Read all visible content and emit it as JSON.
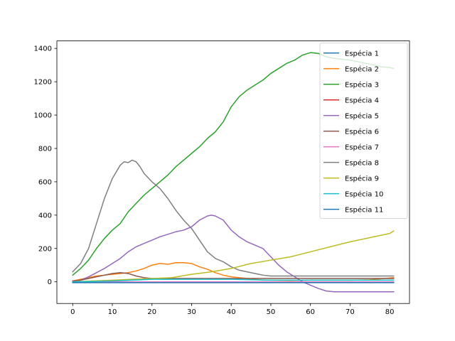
{
  "chart_data": {
    "type": "line",
    "xlim": [
      -4,
      85
    ],
    "ylim": [
      -130,
      1445
    ],
    "xticks": [
      0,
      10,
      20,
      30,
      40,
      50,
      60,
      70,
      80
    ],
    "yticks": [
      0,
      200,
      400,
      600,
      800,
      1000,
      1200,
      1400
    ],
    "grid": false,
    "legend_position": "top-right",
    "series": [
      {
        "name": "Espécia 1",
        "color": "#1f77b4",
        "points": [
          [
            0,
            0
          ],
          [
            81,
            0
          ]
        ]
      },
      {
        "name": "Espécia 2",
        "color": "#ff7f0e",
        "points": [
          [
            0,
            5
          ],
          [
            2,
            15
          ],
          [
            4,
            25
          ],
          [
            6,
            35
          ],
          [
            8,
            40
          ],
          [
            10,
            45
          ],
          [
            12,
            50
          ],
          [
            14,
            55
          ],
          [
            16,
            65
          ],
          [
            18,
            80
          ],
          [
            20,
            100
          ],
          [
            22,
            110
          ],
          [
            24,
            105
          ],
          [
            26,
            115
          ],
          [
            28,
            115
          ],
          [
            30,
            110
          ],
          [
            32,
            90
          ],
          [
            34,
            75
          ],
          [
            36,
            55
          ],
          [
            38,
            40
          ],
          [
            40,
            30
          ],
          [
            42,
            25
          ],
          [
            44,
            20
          ],
          [
            46,
            15
          ],
          [
            48,
            10
          ],
          [
            50,
            10
          ],
          [
            55,
            8
          ],
          [
            60,
            10
          ],
          [
            65,
            10
          ],
          [
            70,
            10
          ],
          [
            75,
            12
          ],
          [
            81,
            25
          ]
        ]
      },
      {
        "name": "Espécia 3",
        "color": "#2ca02c",
        "points": [
          [
            0,
            40
          ],
          [
            2,
            80
          ],
          [
            4,
            130
          ],
          [
            6,
            200
          ],
          [
            8,
            260
          ],
          [
            10,
            310
          ],
          [
            12,
            350
          ],
          [
            14,
            420
          ],
          [
            16,
            470
          ],
          [
            18,
            520
          ],
          [
            20,
            560
          ],
          [
            22,
            600
          ],
          [
            24,
            640
          ],
          [
            26,
            690
          ],
          [
            28,
            730
          ],
          [
            30,
            770
          ],
          [
            32,
            810
          ],
          [
            34,
            860
          ],
          [
            36,
            900
          ],
          [
            38,
            960
          ],
          [
            40,
            1050
          ],
          [
            42,
            1110
          ],
          [
            44,
            1150
          ],
          [
            46,
            1180
          ],
          [
            48,
            1210
          ],
          [
            50,
            1250
          ],
          [
            52,
            1280
          ],
          [
            54,
            1310
          ],
          [
            56,
            1330
          ],
          [
            58,
            1360
          ],
          [
            60,
            1375
          ],
          [
            62,
            1370
          ],
          [
            64,
            1350
          ],
          [
            66,
            1340
          ],
          [
            68,
            1335
          ],
          [
            70,
            1330
          ],
          [
            72,
            1320
          ],
          [
            74,
            1310
          ],
          [
            76,
            1300
          ],
          [
            78,
            1290
          ],
          [
            80,
            1285
          ],
          [
            81,
            1280
          ]
        ]
      },
      {
        "name": "Espécia 4",
        "color": "#d62728",
        "points": [
          [
            0,
            0
          ],
          [
            81,
            0
          ]
        ]
      },
      {
        "name": "Espécia 5",
        "color": "#9467bd",
        "points": [
          [
            0,
            5
          ],
          [
            2,
            10
          ],
          [
            4,
            30
          ],
          [
            6,
            55
          ],
          [
            8,
            80
          ],
          [
            10,
            110
          ],
          [
            12,
            140
          ],
          [
            14,
            180
          ],
          [
            16,
            210
          ],
          [
            18,
            230
          ],
          [
            20,
            250
          ],
          [
            22,
            270
          ],
          [
            24,
            285
          ],
          [
            26,
            300
          ],
          [
            28,
            310
          ],
          [
            30,
            330
          ],
          [
            32,
            370
          ],
          [
            34,
            395
          ],
          [
            35,
            400
          ],
          [
            36,
            395
          ],
          [
            38,
            370
          ],
          [
            40,
            310
          ],
          [
            42,
            270
          ],
          [
            44,
            240
          ],
          [
            46,
            220
          ],
          [
            48,
            200
          ],
          [
            50,
            150
          ],
          [
            52,
            100
          ],
          [
            54,
            60
          ],
          [
            56,
            30
          ],
          [
            58,
            0
          ],
          [
            60,
            -20
          ],
          [
            62,
            -40
          ],
          [
            64,
            -55
          ],
          [
            66,
            -60
          ],
          [
            70,
            -60
          ],
          [
            75,
            -60
          ],
          [
            81,
            -60
          ]
        ]
      },
      {
        "name": "Espécia 6",
        "color": "#8c564b",
        "points": [
          [
            0,
            5
          ],
          [
            2,
            10
          ],
          [
            4,
            20
          ],
          [
            6,
            30
          ],
          [
            8,
            40
          ],
          [
            10,
            50
          ],
          [
            12,
            55
          ],
          [
            14,
            50
          ],
          [
            16,
            35
          ],
          [
            18,
            25
          ],
          [
            20,
            20
          ],
          [
            25,
            20
          ],
          [
            30,
            20
          ],
          [
            40,
            20
          ],
          [
            50,
            20
          ],
          [
            60,
            20
          ],
          [
            70,
            20
          ],
          [
            81,
            20
          ]
        ]
      },
      {
        "name": "Espécia 7",
        "color": "#e377c2",
        "points": [
          [
            0,
            0
          ],
          [
            81,
            0
          ]
        ]
      },
      {
        "name": "Espécia 8",
        "color": "#7f7f7f",
        "points": [
          [
            0,
            60
          ],
          [
            2,
            110
          ],
          [
            4,
            200
          ],
          [
            6,
            350
          ],
          [
            8,
            500
          ],
          [
            10,
            620
          ],
          [
            12,
            700
          ],
          [
            13,
            720
          ],
          [
            14,
            715
          ],
          [
            15,
            730
          ],
          [
            16,
            720
          ],
          [
            17,
            690
          ],
          [
            18,
            650
          ],
          [
            20,
            600
          ],
          [
            22,
            560
          ],
          [
            24,
            500
          ],
          [
            26,
            430
          ],
          [
            28,
            370
          ],
          [
            30,
            320
          ],
          [
            32,
            250
          ],
          [
            34,
            180
          ],
          [
            36,
            140
          ],
          [
            38,
            120
          ],
          [
            40,
            90
          ],
          [
            42,
            70
          ],
          [
            44,
            60
          ],
          [
            46,
            50
          ],
          [
            48,
            40
          ],
          [
            50,
            35
          ],
          [
            55,
            35
          ],
          [
            60,
            35
          ],
          [
            65,
            35
          ],
          [
            70,
            35
          ],
          [
            75,
            35
          ],
          [
            81,
            35
          ]
        ]
      },
      {
        "name": "Espécia 9",
        "color": "#bcbd22",
        "points": [
          [
            0,
            0
          ],
          [
            5,
            5
          ],
          [
            10,
            10
          ],
          [
            15,
            15
          ],
          [
            20,
            20
          ],
          [
            25,
            25
          ],
          [
            30,
            45
          ],
          [
            35,
            60
          ],
          [
            40,
            80
          ],
          [
            45,
            110
          ],
          [
            50,
            130
          ],
          [
            55,
            150
          ],
          [
            60,
            180
          ],
          [
            65,
            210
          ],
          [
            70,
            240
          ],
          [
            75,
            265
          ],
          [
            80,
            290
          ],
          [
            81,
            305
          ]
        ]
      },
      {
        "name": "Espécia 10",
        "color": "#17becf",
        "points": [
          [
            0,
            0
          ],
          [
            5,
            2
          ],
          [
            10,
            5
          ],
          [
            15,
            10
          ],
          [
            20,
            15
          ],
          [
            30,
            15
          ],
          [
            40,
            15
          ],
          [
            50,
            10
          ],
          [
            60,
            10
          ],
          [
            70,
            10
          ],
          [
            81,
            10
          ]
        ]
      },
      {
        "name": "Espécia 11",
        "color": "#1f77b4",
        "points": [
          [
            0,
            -5
          ],
          [
            81,
            -5
          ]
        ]
      }
    ]
  }
}
